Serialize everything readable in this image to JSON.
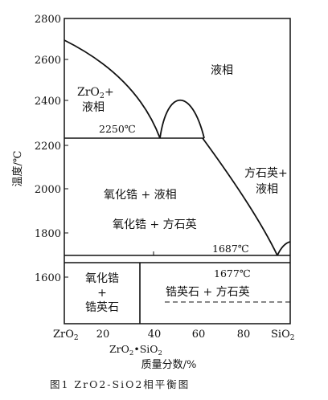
{
  "ylabel": "温度/℃",
  "xlabel": "质量分数/%",
  "caption": "图1 ZrO2-SiO2相平衡图",
  "y_ticks": [
    "2800",
    "2600",
    "2400",
    "2200",
    "2000",
    "1800",
    "1600"
  ],
  "x_ticks": {
    "left": [
      "ZrO",
      "2"
    ],
    "t20": "20",
    "t40": "40",
    "t60": "60",
    "t80": "80",
    "right": [
      "SiO",
      "2"
    ]
  },
  "compound": [
    "ZrO",
    "2",
    "•SiO",
    "2"
  ],
  "isotherms": {
    "eutectic_2250": "2250℃",
    "t1687": "1687℃",
    "t1677": "1677℃"
  },
  "regions": {
    "zro2_liquid": [
      "ZrO",
      "2",
      "+",
      "液相"
    ],
    "liquid": "液相",
    "zirconia_liquid": "氧化锆 + 液相",
    "cristobalite_liquid": [
      "方石英+",
      "液相"
    ],
    "zirconia_cristobalite": "氧化锆 + 方石英",
    "zirconia_zircon": [
      "氧化锆",
      "+",
      "锆英石"
    ],
    "zircon_cristobalite": "锆英石 + 方石英"
  }
}
